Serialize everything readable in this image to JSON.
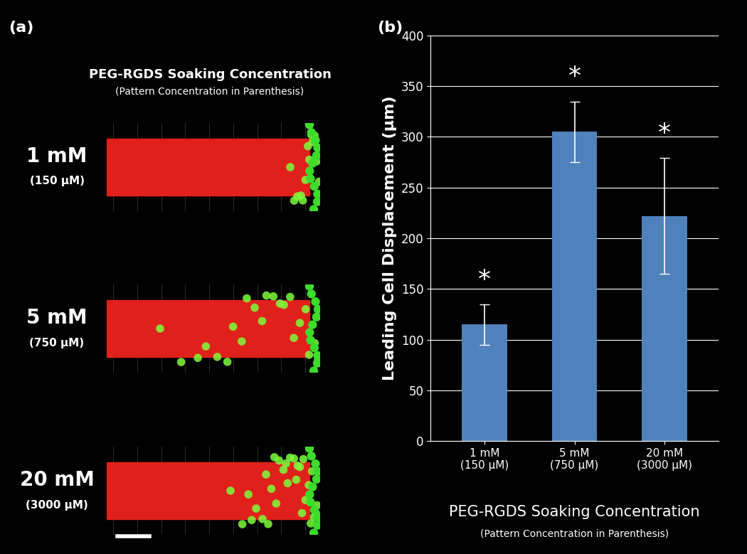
{
  "panel_a": {
    "label": "(a)",
    "title": "PEG-RGDS Soaking Concentration",
    "subtitle": "(Pattern Concentration in Parenthesis)",
    "rows": [
      {
        "label": "1 mM",
        "sublabel": "(150 μM)"
      },
      {
        "label": "5 mM",
        "sublabel": "(750 μM)"
      },
      {
        "label": "20 mM",
        "sublabel": "(3000 μM)"
      }
    ]
  },
  "chart_data": {
    "type": "bar",
    "label": "(b)",
    "categories": [
      "1 mM\n(150 μM)",
      "5 mM\n(750 μM)",
      "20 mM\n(3000 μM)"
    ],
    "values": [
      115,
      305,
      222
    ],
    "errors": [
      20,
      30,
      57
    ],
    "annotations": [
      "*",
      "*",
      "*"
    ],
    "color": "#4f81bd",
    "ylabel": "Leading Cell Displacement (μm)",
    "xlabel": "PEG-RGDS Soaking Concentration",
    "xlabel_subtitle": "(Pattern Concentration in Parenthesis)",
    "ylim": [
      0,
      400
    ],
    "yticks": [
      0,
      50,
      100,
      150,
      200,
      250,
      300,
      350,
      400
    ],
    "grid": true
  }
}
